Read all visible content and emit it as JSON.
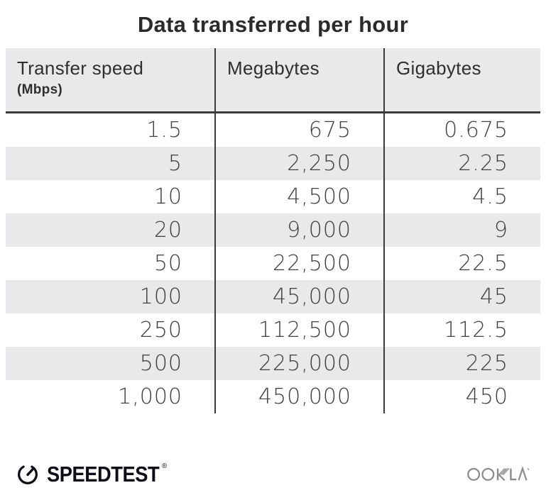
{
  "title": "Data transferred per hour",
  "table": {
    "columns": [
      {
        "label": "Transfer speed",
        "sublabel": "(Mbps)"
      },
      {
        "label": "Megabytes",
        "sublabel": ""
      },
      {
        "label": "Gigabytes",
        "sublabel": ""
      }
    ],
    "rows": [
      [
        "1.5",
        "675",
        "0.675"
      ],
      [
        "5",
        "2,250",
        "2.25"
      ],
      [
        "10",
        "4,500",
        "4.5"
      ],
      [
        "20",
        "9,000",
        "9"
      ],
      [
        "50",
        "22,500",
        "22.5"
      ],
      [
        "100",
        "45,000",
        "45"
      ],
      [
        "250",
        "112,500",
        "112.5"
      ],
      [
        "500",
        "225,000",
        "225"
      ],
      [
        "1,000",
        "450,000",
        "450"
      ]
    ]
  },
  "footer": {
    "speedtest_label": "SPEEDTEST",
    "speedtest_trademark": "®",
    "ookla_label": "OOKLA"
  },
  "colors": {
    "header_bg": "#e9e9ec",
    "stripe_bg": "#e9e9ec",
    "divider": "#3a3a3a",
    "title_text": "#2b2b2b",
    "data_text": "#3f3f3f",
    "speedtest_black": "#0d0d15",
    "ookla_gray": "#8b8b8b"
  },
  "chart_data": {
    "type": "table",
    "title": "Data transferred per hour",
    "columns": [
      "Transfer speed (Mbps)",
      "Megabytes",
      "Gigabytes"
    ],
    "rows": [
      [
        1.5,
        675,
        0.675
      ],
      [
        5,
        2250,
        2.25
      ],
      [
        10,
        4500,
        4.5
      ],
      [
        20,
        9000,
        9
      ],
      [
        50,
        22500,
        22.5
      ],
      [
        100,
        45000,
        45
      ],
      [
        250,
        112500,
        112.5
      ],
      [
        500,
        225000,
        225
      ],
      [
        1000,
        450000,
        450
      ]
    ],
    "layout": {
      "striped_rows": true,
      "stripe_rows_indices": [
        1,
        3,
        5,
        7
      ],
      "column_dividers": true
    }
  }
}
